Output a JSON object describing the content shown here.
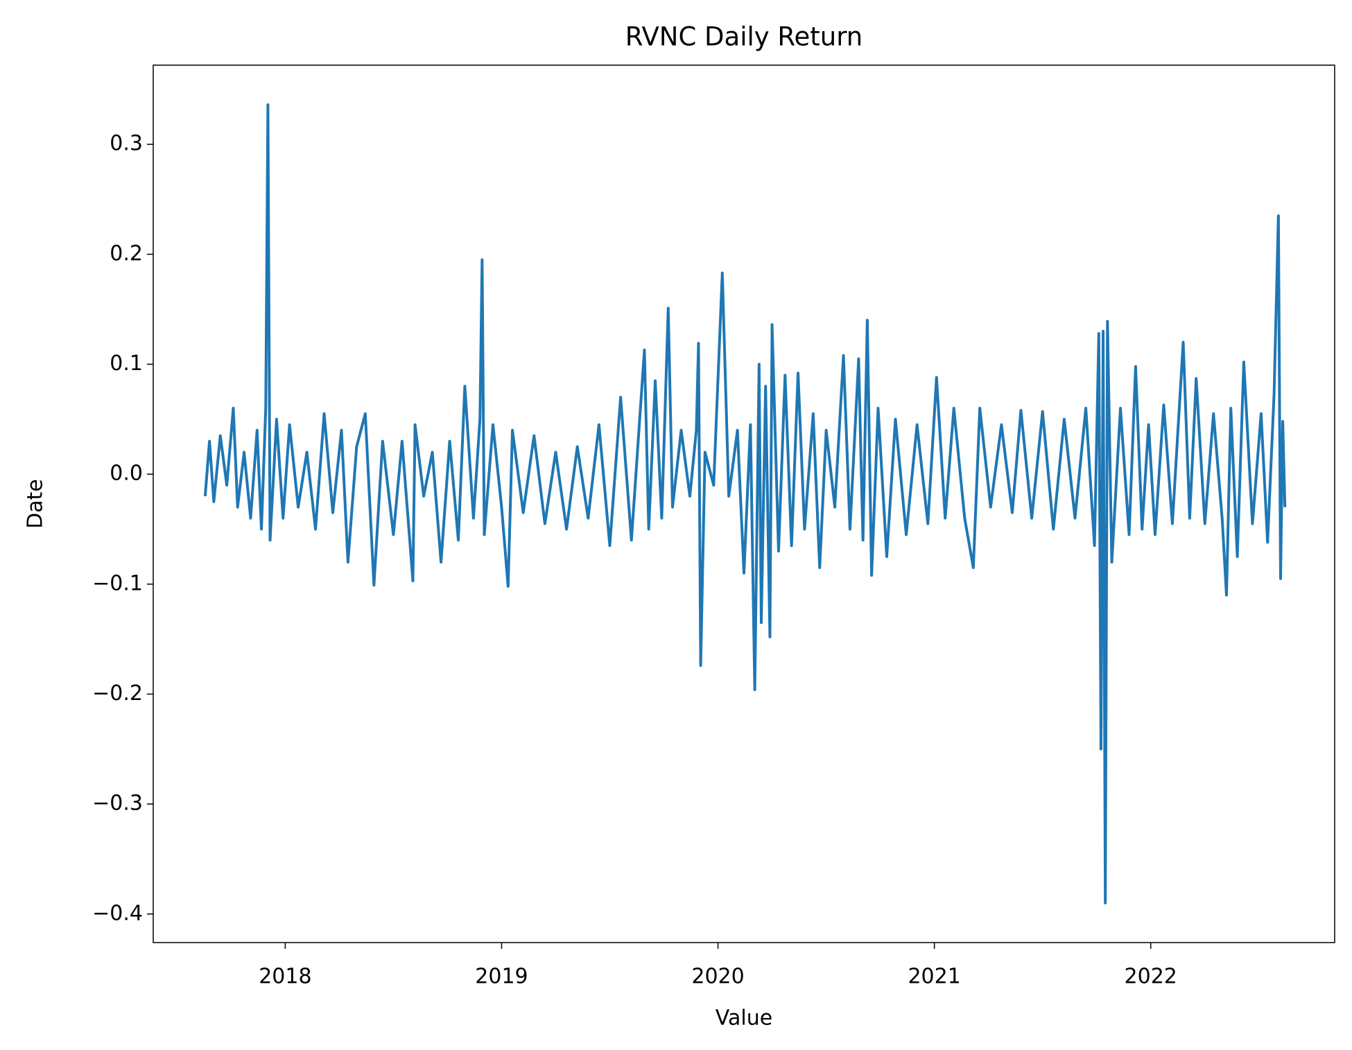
{
  "chart_data": {
    "type": "line",
    "title": "RVNC Daily Return",
    "x_label": "Value",
    "y_label": "Date",
    "x": [
      2017.63,
      2017.65,
      2017.67,
      2017.7,
      2017.73,
      2017.76,
      2017.78,
      2017.81,
      2017.84,
      2017.87,
      2017.89,
      2017.91,
      2017.92,
      2017.93,
      2017.96,
      2017.99,
      2018.02,
      2018.06,
      2018.1,
      2018.14,
      2018.18,
      2018.22,
      2018.26,
      2018.29,
      2018.33,
      2018.37,
      2018.41,
      2018.45,
      2018.5,
      2018.54,
      2018.59,
      2018.6,
      2018.64,
      2018.68,
      2018.72,
      2018.76,
      2018.8,
      2018.83,
      2018.87,
      2018.9,
      2018.91,
      2018.92,
      2018.96,
      2019.0,
      2019.03,
      2019.05,
      2019.1,
      2019.15,
      2019.2,
      2019.25,
      2019.3,
      2019.35,
      2019.4,
      2019.45,
      2019.5,
      2019.55,
      2019.6,
      2019.66,
      2019.68,
      2019.71,
      2019.74,
      2019.77,
      2019.79,
      2019.83,
      2019.87,
      2019.9,
      2019.91,
      2019.92,
      2019.94,
      2019.98,
      2020.02,
      2020.05,
      2020.09,
      2020.12,
      2020.15,
      2020.17,
      2020.19,
      2020.2,
      2020.22,
      2020.24,
      2020.25,
      2020.28,
      2020.31,
      2020.34,
      2020.37,
      2020.4,
      2020.44,
      2020.47,
      2020.5,
      2020.54,
      2020.58,
      2020.61,
      2020.65,
      2020.67,
      2020.69,
      2020.71,
      2020.74,
      2020.78,
      2020.82,
      2020.87,
      2020.92,
      2020.97,
      2021.01,
      2021.05,
      2021.09,
      2021.14,
      2021.18,
      2021.21,
      2021.26,
      2021.31,
      2021.36,
      2021.4,
      2021.45,
      2021.5,
      2021.55,
      2021.6,
      2021.65,
      2021.7,
      2021.74,
      2021.76,
      2021.77,
      2021.78,
      2021.79,
      2021.8,
      2021.82,
      2021.86,
      2021.9,
      2021.93,
      2021.96,
      2021.99,
      2022.02,
      2022.06,
      2022.1,
      2022.15,
      2022.18,
      2022.21,
      2022.25,
      2022.29,
      2022.33,
      2022.35,
      2022.37,
      2022.4,
      2022.43,
      2022.47,
      2022.51,
      2022.54,
      2022.57,
      2022.59,
      2022.6,
      2022.61,
      2022.62
    ],
    "series": [
      {
        "color": "#1f77b4",
        "values": [
          -0.02,
          0.03,
          -0.025,
          0.035,
          -0.01,
          0.06,
          -0.03,
          0.02,
          -0.04,
          0.04,
          -0.05,
          0.06,
          0.336,
          -0.06,
          0.05,
          -0.04,
          0.045,
          -0.03,
          0.02,
          -0.05,
          0.055,
          -0.035,
          0.04,
          -0.08,
          0.025,
          0.055,
          -0.101,
          0.03,
          -0.055,
          0.03,
          -0.097,
          0.045,
          -0.02,
          0.02,
          -0.08,
          0.03,
          -0.06,
          0.08,
          -0.04,
          0.05,
          0.195,
          -0.055,
          0.045,
          -0.03,
          -0.102,
          0.04,
          -0.035,
          0.035,
          -0.045,
          0.02,
          -0.05,
          0.025,
          -0.04,
          0.045,
          -0.065,
          0.07,
          -0.06,
          0.113,
          -0.05,
          0.085,
          -0.04,
          0.151,
          -0.03,
          0.04,
          -0.02,
          0.04,
          0.119,
          -0.174,
          0.02,
          -0.01,
          0.183,
          -0.02,
          0.04,
          -0.09,
          0.045,
          -0.196,
          0.1,
          -0.135,
          0.08,
          -0.148,
          0.136,
          -0.07,
          0.09,
          -0.065,
          0.092,
          -0.05,
          0.055,
          -0.085,
          0.04,
          -0.03,
          0.108,
          -0.05,
          0.105,
          -0.06,
          0.14,
          -0.092,
          0.06,
          -0.075,
          0.05,
          -0.055,
          0.045,
          -0.045,
          0.088,
          -0.04,
          0.06,
          -0.04,
          -0.085,
          0.06,
          -0.03,
          0.045,
          -0.035,
          0.058,
          -0.04,
          0.057,
          -0.05,
          0.05,
          -0.04,
          0.06,
          -0.065,
          0.128,
          -0.25,
          0.13,
          -0.39,
          0.139,
          -0.08,
          0.06,
          -0.055,
          0.098,
          -0.05,
          0.045,
          -0.055,
          0.063,
          -0.045,
          0.12,
          -0.04,
          0.087,
          -0.045,
          0.055,
          -0.04,
          -0.11,
          0.06,
          -0.075,
          0.102,
          -0.045,
          0.055,
          -0.062,
          0.073,
          0.235,
          -0.095,
          0.048,
          -0.03
        ]
      }
    ],
    "xlim": [
      2017.39,
      2022.85
    ],
    "xticks": [
      2018,
      2019,
      2020,
      2021,
      2022
    ],
    "ylim": [
      -0.426,
      0.372
    ],
    "yticks": [
      {
        "value": -0.4,
        "label": "−0.4"
      },
      {
        "value": -0.3,
        "label": "−0.3"
      },
      {
        "value": -0.2,
        "label": "−0.2"
      },
      {
        "value": -0.1,
        "label": "−0.1"
      },
      {
        "value": 0,
        "label": "0.0"
      },
      0.1,
      0.2,
      0.3
    ],
    "grid": false
  }
}
